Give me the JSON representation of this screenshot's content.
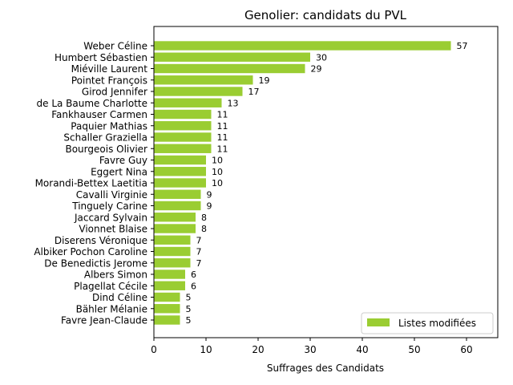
{
  "chart_data": {
    "type": "bar",
    "orientation": "horizontal",
    "title": "Genolier: candidats du PVL",
    "xlabel": "Suffrages des Candidats",
    "ylabel": "",
    "xlim": [
      0,
      66
    ],
    "xticks": [
      0,
      10,
      20,
      30,
      40,
      50,
      60
    ],
    "grid": false,
    "legend_placement": "bottom-right",
    "bar_color": "#9acd32",
    "categories": [
      "Weber Céline",
      "Humbert Sébastien",
      "Miéville Laurent",
      "Pointet François",
      "Girod Jennifer",
      "de La Baume Charlotte",
      "Fankhauser Carmen",
      "Paquier Mathias",
      "Schaller Graziella",
      "Bourgeois Olivier",
      "Favre Guy",
      "Eggert Nina",
      "Morandi-Bettex Laetitia",
      "Cavalli Virginie",
      "Tinguely Carine",
      "Jaccard Sylvain",
      "Vionnet Blaise",
      "Diserens Véronique",
      "Albiker Pochon Caroline",
      "De Benedictis Jerome",
      "Albers Simon",
      "Plagellat Cécile",
      "Dind Céline",
      "Bähler Mélanie",
      "Favre Jean-Claude"
    ],
    "series": [
      {
        "name": "Listes modifiées",
        "values": [
          57,
          30,
          29,
          19,
          17,
          13,
          11,
          11,
          11,
          11,
          10,
          10,
          10,
          9,
          9,
          8,
          8,
          7,
          7,
          7,
          6,
          6,
          5,
          5,
          5
        ]
      }
    ]
  }
}
